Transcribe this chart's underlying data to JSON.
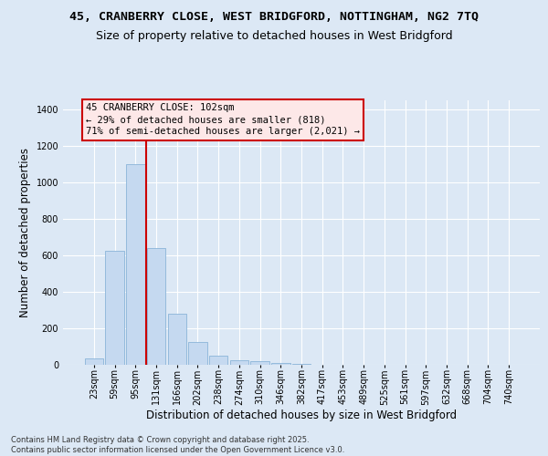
{
  "title_line1": "45, CRANBERRY CLOSE, WEST BRIDGFORD, NOTTINGHAM, NG2 7TQ",
  "title_line2": "Size of property relative to detached houses in West Bridgford",
  "xlabel": "Distribution of detached houses by size in West Bridgford",
  "ylabel": "Number of detached properties",
  "bar_values": [
    35,
    625,
    1100,
    640,
    280,
    125,
    50,
    25,
    22,
    10,
    4,
    0,
    0,
    0,
    0,
    0,
    0,
    0,
    0,
    0,
    0
  ],
  "categories": [
    "23sqm",
    "59sqm",
    "95sqm",
    "131sqm",
    "166sqm",
    "202sqm",
    "238sqm",
    "274sqm",
    "310sqm",
    "346sqm",
    "382sqm",
    "417sqm",
    "453sqm",
    "489sqm",
    "525sqm",
    "561sqm",
    "597sqm",
    "632sqm",
    "668sqm",
    "704sqm",
    "740sqm"
  ],
  "bar_color": "#c5d9f0",
  "bar_edge_color": "#8ab4d8",
  "background_color": "#dce8f5",
  "grid_color": "#ffffff",
  "vline_color": "#cc0000",
  "vline_x": 2.5,
  "annotation_text": "45 CRANBERRY CLOSE: 102sqm\n← 29% of detached houses are smaller (818)\n71% of semi-detached houses are larger (2,021) →",
  "annotation_box_facecolor": "#fde8e8",
  "annotation_box_edge": "#cc0000",
  "ylim": [
    0,
    1450
  ],
  "yticks": [
    0,
    200,
    400,
    600,
    800,
    1000,
    1200,
    1400
  ],
  "footer_line1": "Contains HM Land Registry data © Crown copyright and database right 2025.",
  "footer_line2": "Contains public sector information licensed under the Open Government Licence v3.0.",
  "title_fontsize": 9.5,
  "subtitle_fontsize": 9,
  "label_fontsize": 8.5,
  "tick_fontsize": 7,
  "footer_fontsize": 6
}
